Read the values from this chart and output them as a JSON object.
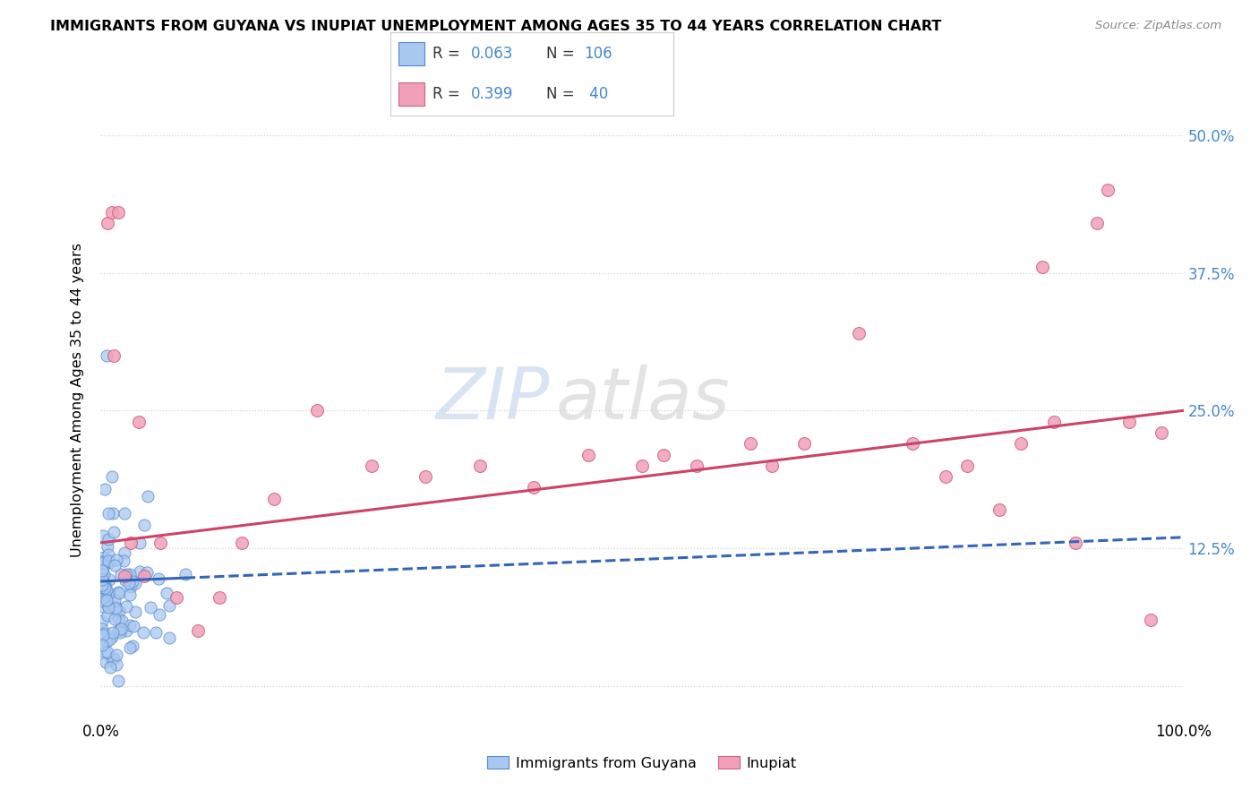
{
  "title": "IMMIGRANTS FROM GUYANA VS INUPIAT UNEMPLOYMENT AMONG AGES 35 TO 44 YEARS CORRELATION CHART",
  "source": "Source: ZipAtlas.com",
  "ylabel": "Unemployment Among Ages 35 to 44 years",
  "watermark_zip": "ZIP",
  "watermark_atlas": "atlas",
  "guyana_color": "#a8c8f0",
  "guyana_edge": "#5588cc",
  "inupiat_color": "#f0a0b8",
  "inupiat_edge": "#d06080",
  "guyana_line_color": "#3366bb",
  "inupiat_line_color": "#cc4466",
  "legend_guyana_R": "0.063",
  "legend_guyana_N": "106",
  "legend_inupiat_R": "0.399",
  "legend_inupiat_N": " 40",
  "legend_label_guyana": "Immigrants from Guyana",
  "legend_label_inupiat": "Inupiat",
  "value_color": "#4488cc",
  "xlim": [
    0.0,
    1.0
  ],
  "ylim": [
    -0.03,
    0.55
  ],
  "yticks": [
    0.0,
    0.125,
    0.25,
    0.375,
    0.5
  ],
  "ytick_labels_right": [
    "",
    "12.5%",
    "25.0%",
    "37.5%",
    "50.0%"
  ],
  "guyana_seed": 42,
  "inupiat_seed": 7,
  "inupiat_x": [
    0.006,
    0.01,
    0.012,
    0.016,
    0.022,
    0.028,
    0.035,
    0.04,
    0.055,
    0.07,
    0.09,
    0.11,
    0.13,
    0.16,
    0.2,
    0.25,
    0.3,
    0.35,
    0.4,
    0.45,
    0.5,
    0.52,
    0.55,
    0.6,
    0.62,
    0.65,
    0.7,
    0.75,
    0.78,
    0.8,
    0.83,
    0.85,
    0.87,
    0.88,
    0.9,
    0.92,
    0.93,
    0.95,
    0.97,
    0.98
  ],
  "inupiat_y": [
    0.42,
    0.43,
    0.3,
    0.43,
    0.1,
    0.13,
    0.24,
    0.1,
    0.13,
    0.08,
    0.05,
    0.08,
    0.13,
    0.17,
    0.25,
    0.2,
    0.19,
    0.2,
    0.18,
    0.21,
    0.2,
    0.21,
    0.2,
    0.22,
    0.2,
    0.22,
    0.32,
    0.22,
    0.19,
    0.2,
    0.16,
    0.22,
    0.38,
    0.24,
    0.13,
    0.42,
    0.45,
    0.24,
    0.06,
    0.23
  ]
}
